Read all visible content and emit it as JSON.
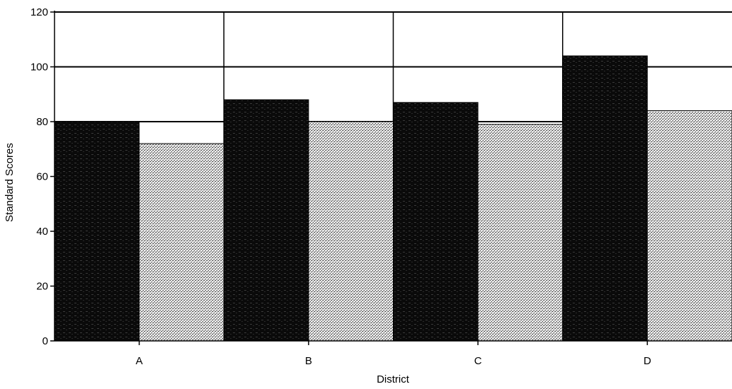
{
  "chart_data": {
    "type": "bar",
    "title": "",
    "xlabel": "District",
    "ylabel": "Standard Scores",
    "categories": [
      "A",
      "B",
      "C",
      "D"
    ],
    "series": [
      {
        "values": [
          80,
          88,
          87,
          104
        ]
      },
      {
        "values": [
          72,
          80,
          79,
          84
        ]
      }
    ],
    "ylim": [
      0,
      120
    ],
    "yticks": [
      0,
      20,
      40,
      60,
      80,
      100,
      120
    ],
    "grid": "horizontal",
    "legend": "none",
    "colors": {
      "series_1": "#0a0a0a",
      "series_2": "#d8d8d8",
      "gridline": "#000000",
      "background": "#ffffff"
    }
  }
}
